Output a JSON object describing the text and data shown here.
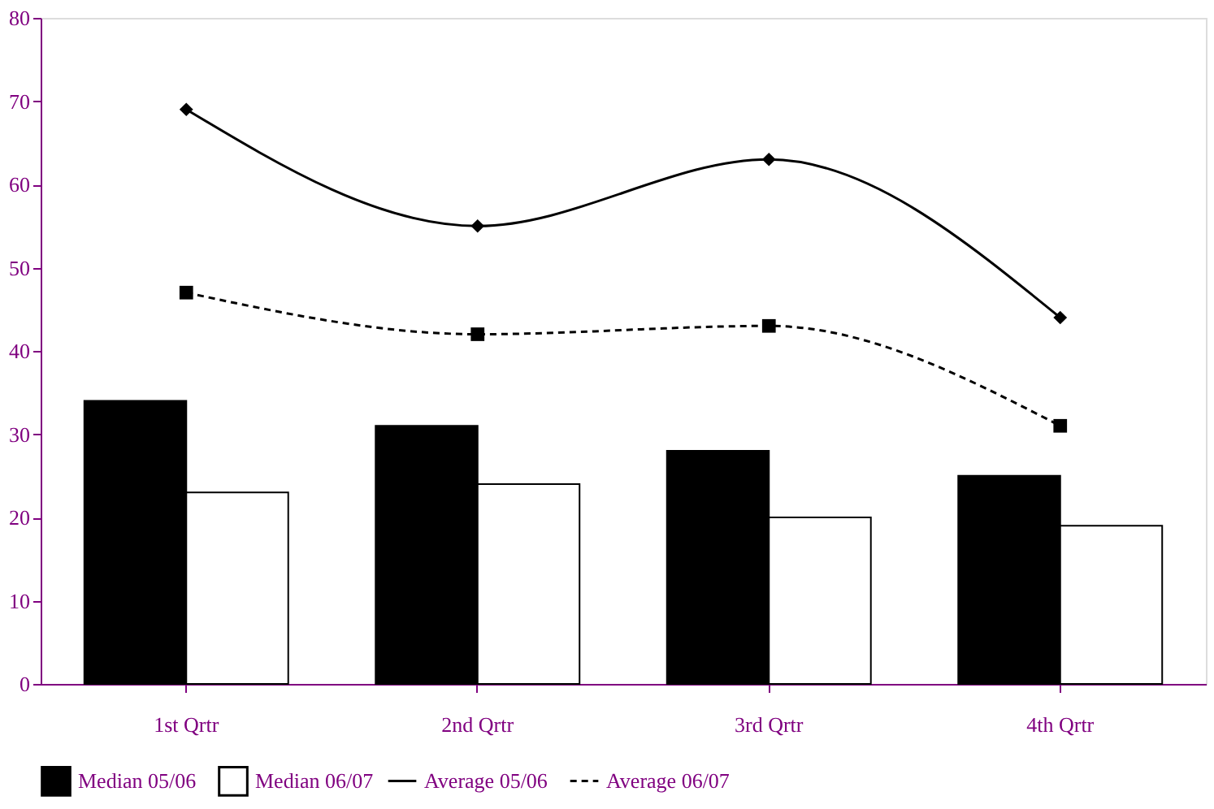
{
  "chart_data": {
    "type": "bar",
    "categories": [
      "1st Qrtr",
      "2nd Qrtr",
      "3rd Qrtr",
      "4th Qrtr"
    ],
    "series": [
      {
        "name": "Median 05/06",
        "color": "#000000",
        "values": [
          34,
          31,
          28,
          25
        ]
      },
      {
        "name": "Median 06/07",
        "color": "#ffffff",
        "values": [
          23,
          24,
          20,
          19
        ]
      },
      {
        "name": "Average 05/06",
        "type": "line",
        "color": "#000000",
        "marker": "diamond",
        "line_style": "solid",
        "values": [
          69,
          55,
          63,
          44
        ]
      },
      {
        "name": "Average 06/07",
        "type": "line",
        "color": "#000000",
        "marker": "square",
        "line_style": "dashed",
        "values": [
          47,
          42,
          43,
          31
        ]
      }
    ],
    "ylim": [
      0,
      80
    ],
    "yticks": [
      0,
      10,
      20,
      30,
      40,
      50,
      60,
      70,
      80
    ],
    "grid": false,
    "legend": "bottom"
  }
}
